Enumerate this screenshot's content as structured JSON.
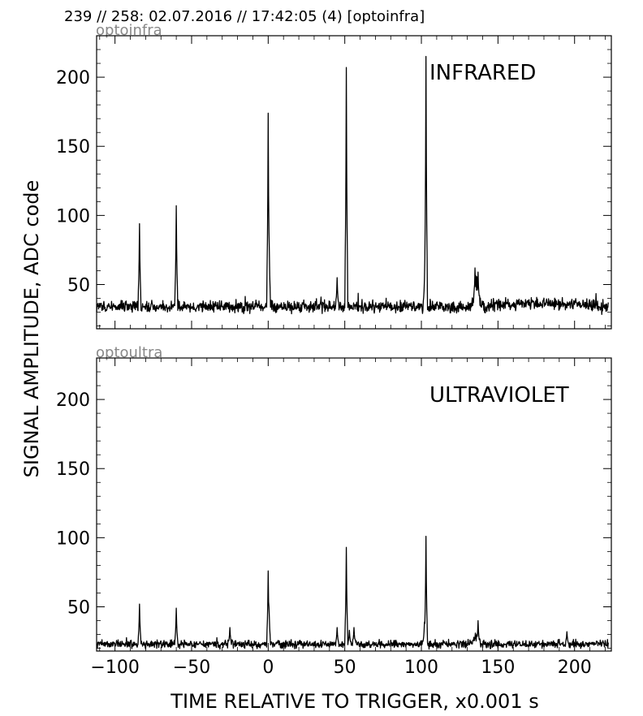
{
  "header": "239 // 258:   02.07.2016 // 17:42:05 (4)  [optoinfra]",
  "xlabel": "TIME RELATIVE TO TRIGGER,   x0.001 s",
  "ylabel": "SIGNAL AMPLITUDE,  ADC code",
  "chart_data": [
    {
      "type": "line",
      "panel_name": "optoinfra",
      "channel_label": "INFRARED",
      "xlim": [
        -112,
        224
      ],
      "ylim": [
        18,
        230
      ],
      "xticks": [
        -100,
        -50,
        0,
        50,
        100,
        150,
        200
      ],
      "yticks": [
        50,
        100,
        150,
        200
      ],
      "show_xtick_labels": false,
      "baseline": 34,
      "noise": 3,
      "bumps": [
        {
          "x": 136,
          "height": 22,
          "width": 1.5
        },
        {
          "x": 170,
          "height": 3,
          "width": 12
        },
        {
          "x": 200,
          "height": 2,
          "width": 10
        }
      ],
      "peaks": [
        {
          "x": -84,
          "y": 94
        },
        {
          "x": -60,
          "y": 107
        },
        {
          "x": 0,
          "y": 174
        },
        {
          "x": 0.6,
          "y": 89
        },
        {
          "x": 45,
          "y": 55
        },
        {
          "x": 51,
          "y": 207
        },
        {
          "x": 102,
          "y": 54
        },
        {
          "x": 103,
          "y": 215
        },
        {
          "x": 135,
          "y": 62
        },
        {
          "x": 137,
          "y": 59
        }
      ]
    },
    {
      "type": "line",
      "panel_name": "optoultra",
      "channel_label": "ULTRAVIOLET",
      "xlim": [
        -112,
        224
      ],
      "ylim": [
        18,
        230
      ],
      "xticks": [
        -100,
        -50,
        0,
        50,
        100,
        150,
        200
      ],
      "yticks": [
        50,
        100,
        150,
        200
      ],
      "show_xtick_labels": true,
      "baseline": 23,
      "noise": 2,
      "bumps": [
        {
          "x": 136,
          "height": 6,
          "width": 1.5
        }
      ],
      "peaks": [
        {
          "x": -84,
          "y": 52
        },
        {
          "x": -60,
          "y": 49
        },
        {
          "x": -25,
          "y": 35
        },
        {
          "x": 0,
          "y": 76
        },
        {
          "x": 0.6,
          "y": 50
        },
        {
          "x": 45,
          "y": 35
        },
        {
          "x": 51,
          "y": 93
        },
        {
          "x": 53,
          "y": 33
        },
        {
          "x": 56,
          "y": 35
        },
        {
          "x": 102,
          "y": 39
        },
        {
          "x": 103,
          "y": 101
        },
        {
          "x": 137,
          "y": 40
        },
        {
          "x": 195,
          "y": 32
        }
      ]
    }
  ]
}
